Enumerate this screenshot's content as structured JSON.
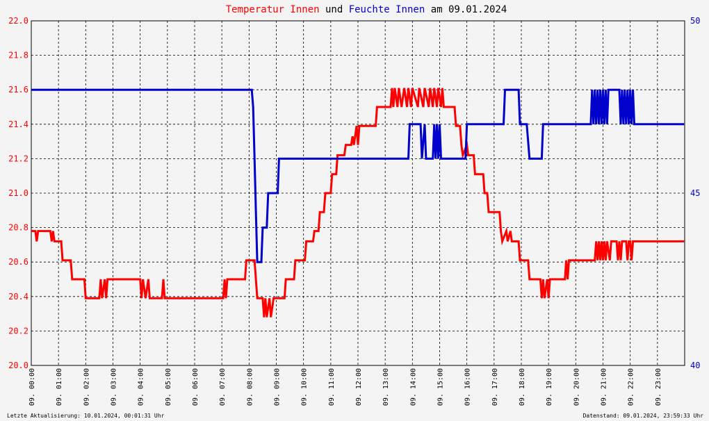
{
  "chart_data": {
    "type": "line",
    "title": {
      "part1": "Temperatur Innen",
      "part2": " und ",
      "part3": "Feuchte Innen",
      "part4": " am 09.01.2024"
    },
    "x_tick_labels": [
      "09. 00:00",
      "09. 01:00",
      "09. 02:00",
      "09. 03:00",
      "09. 04:00",
      "09. 05:00",
      "09. 06:00",
      "09. 07:00",
      "09. 08:00",
      "09. 09:00",
      "09. 10:00",
      "09. 11:00",
      "09. 12:00",
      "09. 13:00",
      "09. 14:00",
      "09. 15:00",
      "09. 16:00",
      "09. 17:00",
      "09. 18:00",
      "09. 19:00",
      "09. 20:00",
      "09. 21:00",
      "09. 22:00",
      "09. 23:00"
    ],
    "xlim": [
      0,
      24
    ],
    "y_left": {
      "ylim": [
        20.0,
        22.0
      ],
      "ticks": [
        "20.0",
        "20.2",
        "20.4",
        "20.6",
        "20.8",
        "21.0",
        "21.2",
        "21.4",
        "21.6",
        "21.8",
        "22.0"
      ]
    },
    "y_right": {
      "ylim": [
        40,
        50
      ],
      "ticks": [
        "40",
        "45",
        "50"
      ]
    },
    "grid": true,
    "colors": {
      "temperature": "#ff0000",
      "humidity": "#0000cc",
      "background": "#f4f4f4"
    },
    "series": [
      {
        "name": "Temperatur Innen",
        "axis": "left",
        "points": [
          [
            0,
            20.78
          ],
          [
            0.15,
            20.78
          ],
          [
            0.2,
            20.72
          ],
          [
            0.25,
            20.78
          ],
          [
            0.7,
            20.78
          ],
          [
            0.75,
            20.72
          ],
          [
            0.8,
            20.78
          ],
          [
            0.85,
            20.72
          ],
          [
            1.1,
            20.72
          ],
          [
            1.15,
            20.61
          ],
          [
            1.45,
            20.61
          ],
          [
            1.5,
            20.5
          ],
          [
            1.95,
            20.5
          ],
          [
            2.0,
            20.39
          ],
          [
            2.5,
            20.39
          ],
          [
            2.55,
            20.5
          ],
          [
            2.6,
            20.39
          ],
          [
            2.7,
            20.5
          ],
          [
            2.75,
            20.39
          ],
          [
            2.8,
            20.5
          ],
          [
            4.0,
            20.5
          ],
          [
            4.05,
            20.39
          ],
          [
            4.1,
            20.5
          ],
          [
            4.2,
            20.39
          ],
          [
            4.3,
            20.5
          ],
          [
            4.35,
            20.39
          ],
          [
            4.8,
            20.39
          ],
          [
            4.85,
            20.5
          ],
          [
            4.9,
            20.39
          ],
          [
            7.05,
            20.39
          ],
          [
            7.1,
            20.5
          ],
          [
            7.15,
            20.39
          ],
          [
            7.2,
            20.5
          ],
          [
            7.85,
            20.5
          ],
          [
            7.9,
            20.61
          ],
          [
            8.2,
            20.61
          ],
          [
            8.3,
            20.39
          ],
          [
            8.5,
            20.39
          ],
          [
            8.55,
            20.28
          ],
          [
            8.6,
            20.39
          ],
          [
            8.65,
            20.28
          ],
          [
            8.75,
            20.39
          ],
          [
            8.8,
            20.28
          ],
          [
            8.9,
            20.39
          ],
          [
            9.3,
            20.39
          ],
          [
            9.35,
            20.5
          ],
          [
            9.65,
            20.5
          ],
          [
            9.7,
            20.61
          ],
          [
            10.05,
            20.61
          ],
          [
            10.1,
            20.72
          ],
          [
            10.35,
            20.72
          ],
          [
            10.4,
            20.78
          ],
          [
            10.55,
            20.78
          ],
          [
            10.6,
            20.89
          ],
          [
            10.75,
            20.89
          ],
          [
            10.8,
            21.0
          ],
          [
            11.0,
            21.0
          ],
          [
            11.05,
            21.11
          ],
          [
            11.2,
            21.11
          ],
          [
            11.25,
            21.22
          ],
          [
            11.5,
            21.22
          ],
          [
            11.55,
            21.28
          ],
          [
            11.75,
            21.28
          ],
          [
            11.8,
            21.33
          ],
          [
            11.85,
            21.28
          ],
          [
            11.95,
            21.39
          ],
          [
            12.0,
            21.28
          ],
          [
            12.05,
            21.39
          ],
          [
            12.65,
            21.39
          ],
          [
            12.7,
            21.5
          ],
          [
            13.2,
            21.5
          ],
          [
            13.25,
            21.61
          ],
          [
            13.3,
            21.5
          ],
          [
            13.35,
            21.61
          ],
          [
            13.45,
            21.5
          ],
          [
            13.5,
            21.61
          ],
          [
            13.6,
            21.5
          ],
          [
            13.7,
            21.61
          ],
          [
            13.8,
            21.5
          ],
          [
            13.85,
            21.61
          ],
          [
            13.95,
            21.5
          ],
          [
            14.0,
            21.61
          ],
          [
            14.2,
            21.5
          ],
          [
            14.25,
            21.61
          ],
          [
            14.4,
            21.5
          ],
          [
            14.45,
            21.61
          ],
          [
            14.6,
            21.5
          ],
          [
            14.65,
            21.61
          ],
          [
            14.75,
            21.5
          ],
          [
            14.8,
            21.61
          ],
          [
            14.9,
            21.5
          ],
          [
            14.95,
            21.61
          ],
          [
            15.05,
            21.5
          ],
          [
            15.1,
            21.61
          ],
          [
            15.15,
            21.5
          ],
          [
            15.55,
            21.5
          ],
          [
            15.6,
            21.39
          ],
          [
            15.75,
            21.39
          ],
          [
            15.8,
            21.28
          ],
          [
            15.85,
            21.22
          ],
          [
            16.0,
            21.28
          ],
          [
            16.05,
            21.22
          ],
          [
            16.25,
            21.22
          ],
          [
            16.3,
            21.11
          ],
          [
            16.6,
            21.11
          ],
          [
            16.65,
            21.0
          ],
          [
            16.75,
            21.0
          ],
          [
            16.8,
            20.89
          ],
          [
            17.2,
            20.89
          ],
          [
            17.25,
            20.78
          ],
          [
            17.3,
            20.72
          ],
          [
            17.45,
            20.78
          ],
          [
            17.5,
            20.72
          ],
          [
            17.6,
            20.78
          ],
          [
            17.65,
            20.72
          ],
          [
            17.9,
            20.72
          ],
          [
            17.95,
            20.61
          ],
          [
            18.25,
            20.61
          ],
          [
            18.3,
            20.5
          ],
          [
            18.7,
            20.5
          ],
          [
            18.75,
            20.39
          ],
          [
            18.8,
            20.5
          ],
          [
            18.85,
            20.39
          ],
          [
            18.95,
            20.5
          ],
          [
            19.0,
            20.39
          ],
          [
            19.05,
            20.5
          ],
          [
            19.6,
            20.5
          ],
          [
            19.65,
            20.61
          ],
          [
            19.7,
            20.5
          ],
          [
            19.75,
            20.61
          ],
          [
            20.7,
            20.61
          ],
          [
            20.75,
            20.72
          ],
          [
            20.8,
            20.61
          ],
          [
            20.85,
            20.72
          ],
          [
            20.9,
            20.61
          ],
          [
            20.95,
            20.72
          ],
          [
            21.0,
            20.61
          ],
          [
            21.05,
            20.72
          ],
          [
            21.1,
            20.61
          ],
          [
            21.15,
            20.72
          ],
          [
            21.25,
            20.61
          ],
          [
            21.3,
            20.72
          ],
          [
            21.5,
            20.72
          ],
          [
            21.55,
            20.61
          ],
          [
            21.6,
            20.72
          ],
          [
            21.65,
            20.61
          ],
          [
            21.7,
            20.72
          ],
          [
            21.85,
            20.72
          ],
          [
            21.9,
            20.61
          ],
          [
            21.95,
            20.72
          ],
          [
            22.0,
            20.72
          ],
          [
            22.05,
            20.61
          ],
          [
            22.1,
            20.72
          ],
          [
            23.98,
            20.72
          ]
        ]
      },
      {
        "name": "Feuchte Innen",
        "axis": "right",
        "points": [
          [
            0,
            48.0
          ],
          [
            8.1,
            48.0
          ],
          [
            8.15,
            47.5
          ],
          [
            8.2,
            46.0
          ],
          [
            8.25,
            44.5
          ],
          [
            8.3,
            43.0
          ],
          [
            8.45,
            43.0
          ],
          [
            8.5,
            44.0
          ],
          [
            8.65,
            44.0
          ],
          [
            8.7,
            45.0
          ],
          [
            9.05,
            45.0
          ],
          [
            9.1,
            46.0
          ],
          [
            13.85,
            46.0
          ],
          [
            13.9,
            47.0
          ],
          [
            14.3,
            47.0
          ],
          [
            14.35,
            46.0
          ],
          [
            14.45,
            47.0
          ],
          [
            14.5,
            46.0
          ],
          [
            14.75,
            46.0
          ],
          [
            14.8,
            47.0
          ],
          [
            14.85,
            46.0
          ],
          [
            14.9,
            47.0
          ],
          [
            14.95,
            46.0
          ],
          [
            15.0,
            47.0
          ],
          [
            15.05,
            46.0
          ],
          [
            15.95,
            46.0
          ],
          [
            16.0,
            47.0
          ],
          [
            17.35,
            47.0
          ],
          [
            17.4,
            48.0
          ],
          [
            17.9,
            48.0
          ],
          [
            17.95,
            47.0
          ],
          [
            18.2,
            47.0
          ],
          [
            18.25,
            46.5
          ],
          [
            18.3,
            46.0
          ],
          [
            18.75,
            46.0
          ],
          [
            18.8,
            47.0
          ],
          [
            20.55,
            47.0
          ],
          [
            20.6,
            48.0
          ],
          [
            20.65,
            47.0
          ],
          [
            20.7,
            48.0
          ],
          [
            20.75,
            47.0
          ],
          [
            20.8,
            48.0
          ],
          [
            20.85,
            47.0
          ],
          [
            20.9,
            48.0
          ],
          [
            20.95,
            47.0
          ],
          [
            21.0,
            48.0
          ],
          [
            21.05,
            47.0
          ],
          [
            21.1,
            48.0
          ],
          [
            21.15,
            47.0
          ],
          [
            21.2,
            48.0
          ],
          [
            21.6,
            48.0
          ],
          [
            21.65,
            47.0
          ],
          [
            21.7,
            48.0
          ],
          [
            21.75,
            47.0
          ],
          [
            21.8,
            48.0
          ],
          [
            21.85,
            47.0
          ],
          [
            21.9,
            48.0
          ],
          [
            21.95,
            47.0
          ],
          [
            22.0,
            48.0
          ],
          [
            22.05,
            47.0
          ],
          [
            22.1,
            48.0
          ],
          [
            22.15,
            47.0
          ],
          [
            23.98,
            47.0
          ]
        ]
      }
    ]
  },
  "footer": {
    "left": "Letzte Aktualisierung: 10.01.2024, 00:01:31 Uhr",
    "right": "Datenstand: 09.01.2024, 23:59:33 Uhr"
  }
}
